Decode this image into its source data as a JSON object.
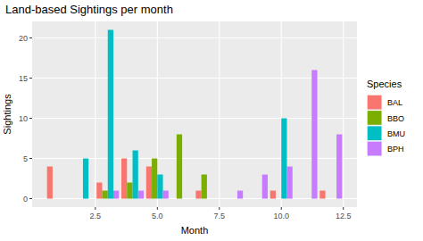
{
  "chart_data": {
    "type": "bar",
    "title": "Land-based Sightings per month",
    "x_label": "Month",
    "y_label": "Sightings",
    "legend_title": "Species",
    "x": [
      1,
      2,
      3,
      4,
      5,
      6,
      7,
      8,
      9,
      10,
      11,
      12
    ],
    "series": [
      {
        "name": "BAL",
        "color": "#F8766D",
        "values": [
          4,
          null,
          2,
          5,
          4,
          null,
          1,
          null,
          null,
          1,
          null,
          1
        ]
      },
      {
        "name": "BBO",
        "color": "#7CAE00",
        "values": [
          null,
          null,
          1,
          2,
          5,
          8,
          3,
          null,
          null,
          null,
          null,
          null
        ]
      },
      {
        "name": "BMU",
        "color": "#00BFC4",
        "values": [
          null,
          5,
          21,
          6,
          3,
          null,
          null,
          null,
          null,
          10,
          null,
          null
        ]
      },
      {
        "name": "BPH",
        "color": "#C77CFF",
        "values": [
          null,
          null,
          1,
          1,
          1,
          null,
          null,
          1,
          3,
          4,
          16,
          8
        ]
      }
    ],
    "xlim": [
      -0.05,
      13.05
    ],
    "xticks": [
      2.5,
      {
        "value": 5,
        "label": "5.0"
      },
      7.5,
      {
        "value": 10,
        "label": "10.0"
      },
      12.5
    ],
    "ylim": [
      -1.05,
      22.05
    ],
    "yticks": [
      0,
      5,
      10,
      15,
      20
    ],
    "grid": true,
    "legend": "right"
  }
}
